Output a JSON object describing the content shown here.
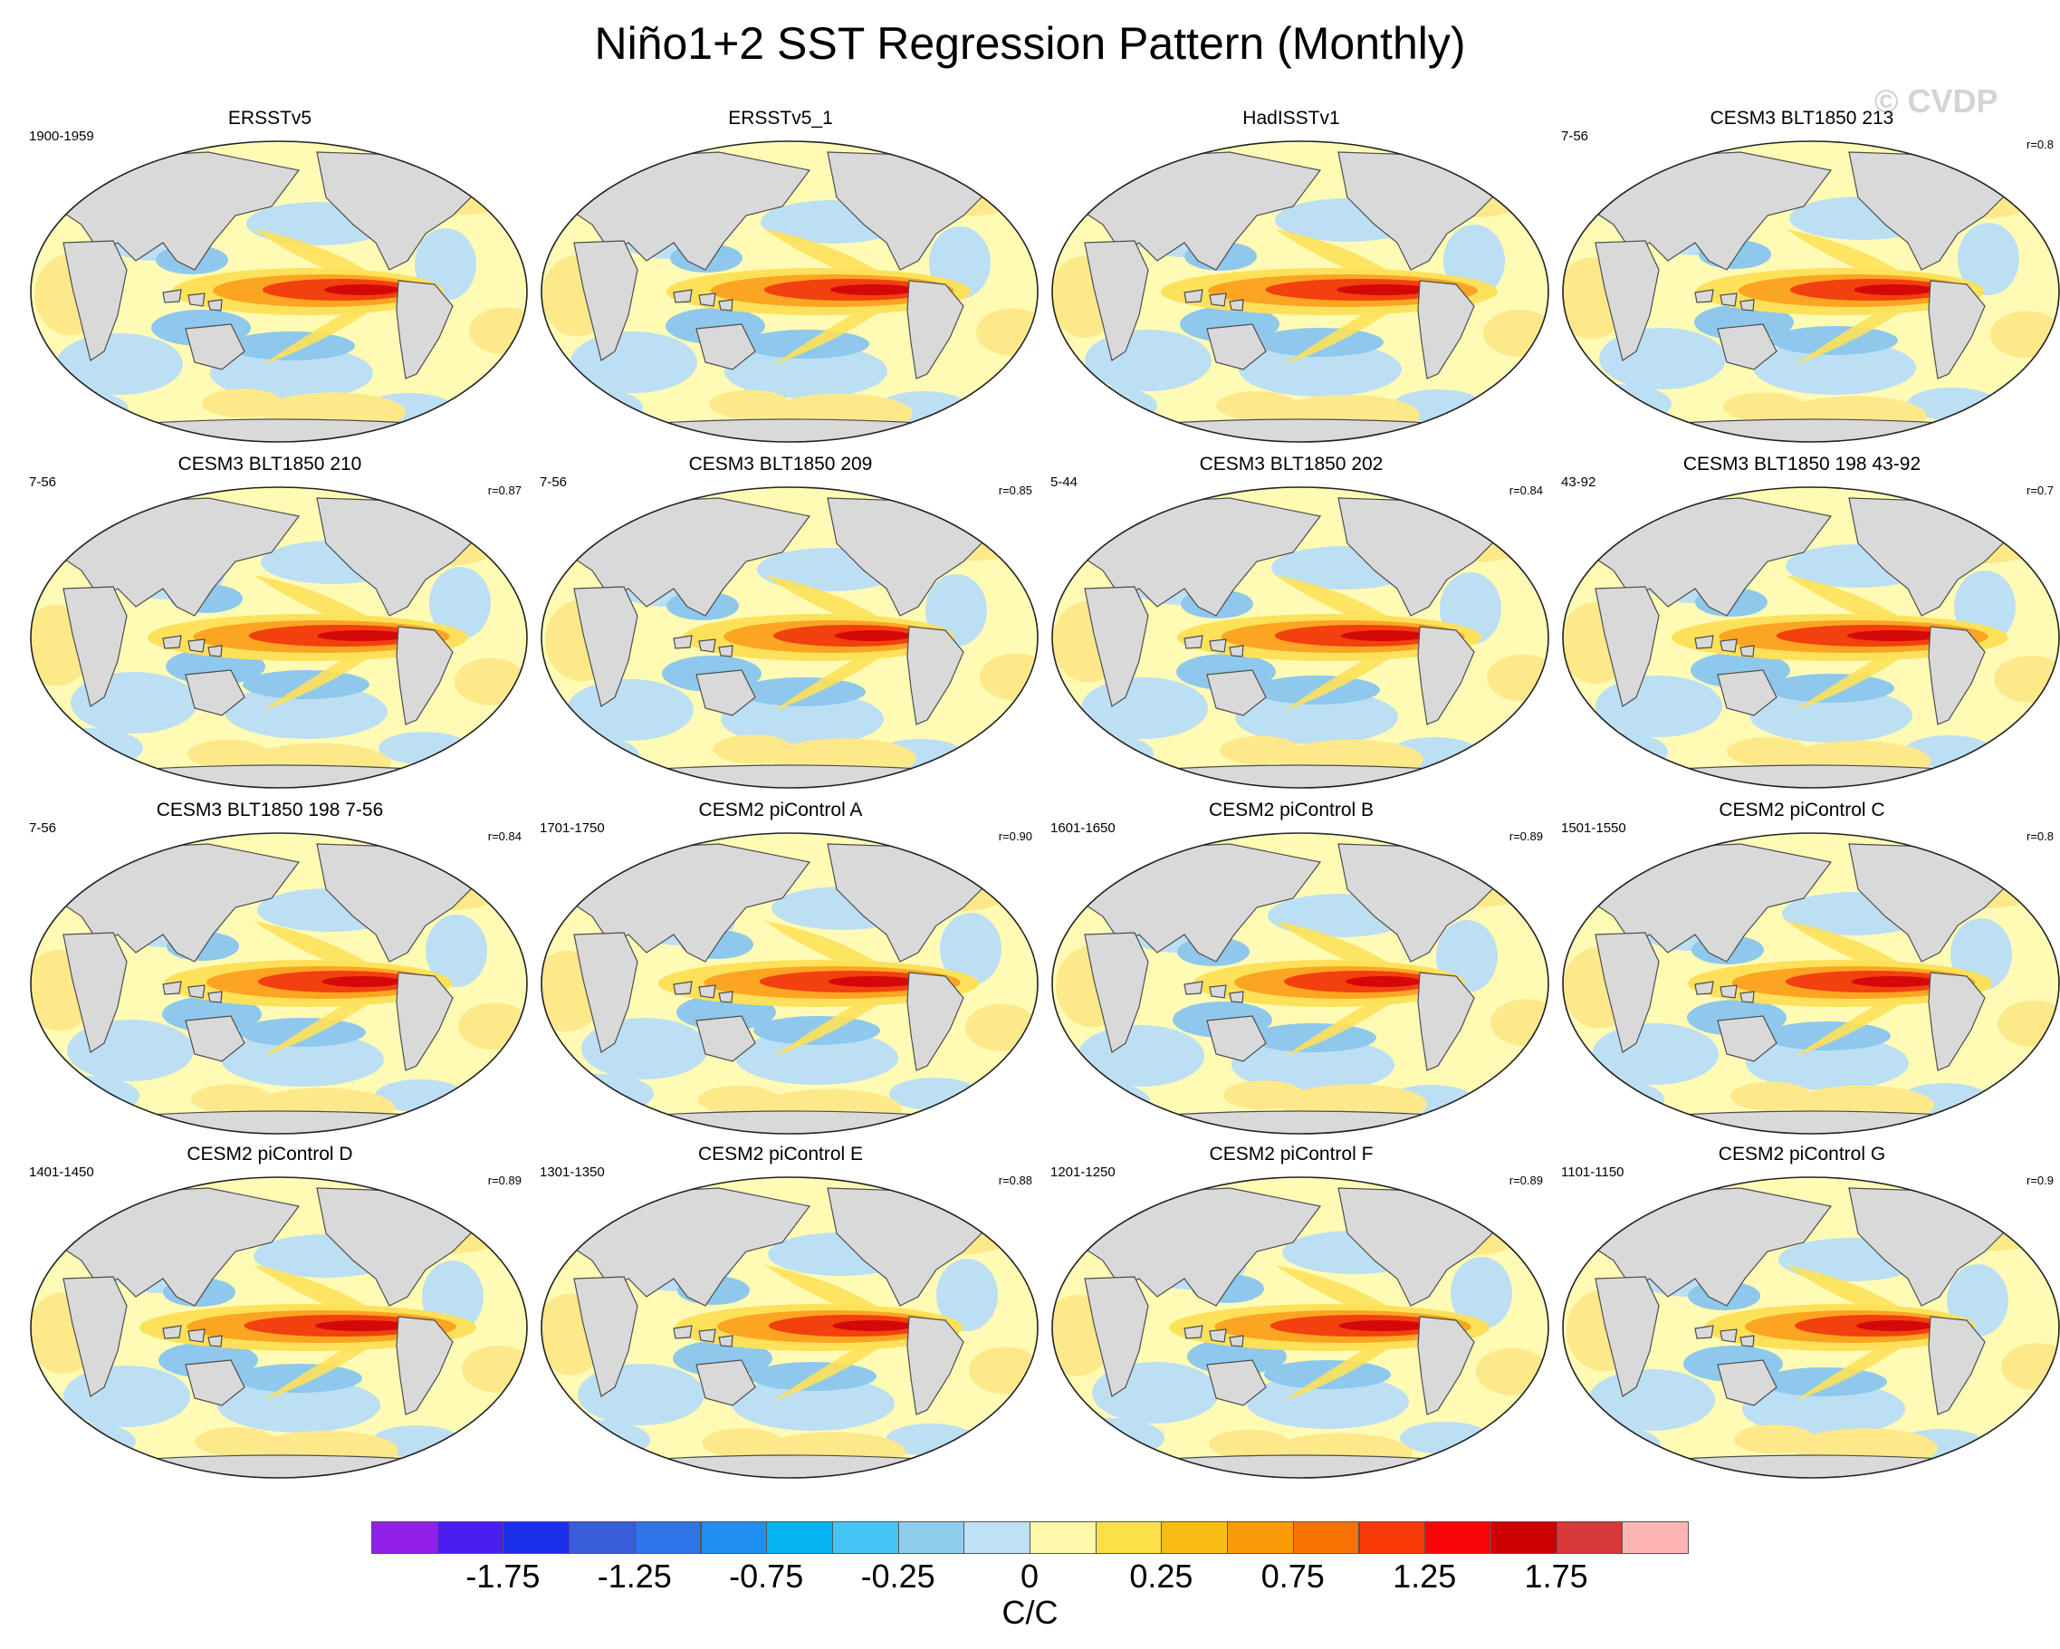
{
  "title": "Niño1+2 SST Regression Pattern (Monthly)",
  "watermark": "© CVDP",
  "panels": [
    {
      "title": "ERSSTv5",
      "period": "1900-1959",
      "r": ""
    },
    {
      "title": "ERSSTv5_1",
      "period": "",
      "r": ""
    },
    {
      "title": "HadISSTv1",
      "period": "",
      "r": ""
    },
    {
      "title": "CESM3 BLT1850 213",
      "period": "7-56",
      "r": "r=0.8"
    },
    {
      "title": "CESM3 BLT1850 210",
      "period": "7-56",
      "r": "r=0.87"
    },
    {
      "title": "CESM3 BLT1850 209",
      "period": "7-56",
      "r": "r=0.85"
    },
    {
      "title": "CESM3 BLT1850 202",
      "period": "5-44",
      "r": "r=0.84"
    },
    {
      "title": "CESM3 BLT1850 198 43-92",
      "period": "43-92",
      "r": "r=0.7"
    },
    {
      "title": "CESM3 BLT1850 198 7-56",
      "period": "7-56",
      "r": "r=0.84"
    },
    {
      "title": "CESM2 piControl A",
      "period": "1701-1750",
      "r": "r=0.90"
    },
    {
      "title": "CESM2 piControl B",
      "period": "1601-1650",
      "r": "r=0.89"
    },
    {
      "title": "CESM2 piControl C",
      "period": "1501-1550",
      "r": "r=0.8"
    },
    {
      "title": "CESM2 piControl D",
      "period": "1401-1450",
      "r": "r=0.89"
    },
    {
      "title": "CESM2 piControl E",
      "period": "1301-1350",
      "r": "r=0.88"
    },
    {
      "title": "CESM2 piControl F",
      "period": "1201-1250",
      "r": "r=0.89"
    },
    {
      "title": "CESM2 piControl G",
      "period": "1101-1150",
      "r": "r=0.9"
    }
  ],
  "colorbar": {
    "units": "C/C",
    "labels": [
      "-1.75",
      "-1.25",
      "-0.75",
      "-0.25",
      "0",
      "0.25",
      "0.75",
      "1.25",
      "1.75"
    ],
    "colors": [
      "#8f1fe8",
      "#4a1df0",
      "#1b2ee8",
      "#3a5ddc",
      "#2f74e8",
      "#1f8ff0",
      "#05b2f2",
      "#44c4f5",
      "#8ecdee",
      "#bfe1f4",
      "#fff8a8",
      "#fde047",
      "#fbbc14",
      "#fa9a06",
      "#fa7204",
      "#f83a08",
      "#f80606",
      "#cc0000",
      "#d83838",
      "#fdb4b4"
    ],
    "colors_meta": {
      "land": "#d9d9d9",
      "coast": "#4d4d4d",
      "neutral": "#fffbb5",
      "light_blue": "#bcdff4",
      "mid_blue": "#8ec8ec",
      "warm_yellow": "#fde15a",
      "orange": "#fba522",
      "red": "#f2400e",
      "dark_red": "#d40808"
    }
  }
}
